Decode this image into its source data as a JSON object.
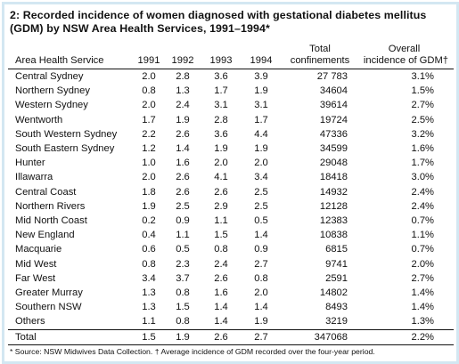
{
  "title": "2: Recorded incidence of women diagnosed with gestational diabetes mellitus (GDM) by NSW Area Health Services, 1991–1994*",
  "table": {
    "headers": {
      "area": "Area Health Service",
      "y1991": "1991",
      "y1992": "1992",
      "y1993": "1993",
      "y1994": "1994",
      "confinements_line1": "Total",
      "confinements_line2": "confinements",
      "incidence_line1": "Overall",
      "incidence_line2": "incidence of GDM†"
    },
    "rows": [
      {
        "area": "Central Sydney",
        "y1991": "2.0",
        "y1992": "2.8",
        "y1993": "3.6",
        "y1994": "3.9",
        "confinements": "27 783",
        "incidence": "3.1%"
      },
      {
        "area": "Northern Sydney",
        "y1991": "0.8",
        "y1992": "1.3",
        "y1993": "1.7",
        "y1994": "1.9",
        "confinements": "34604",
        "incidence": "1.5%"
      },
      {
        "area": "Western Sydney",
        "y1991": "2.0",
        "y1992": "2.4",
        "y1993": "3.1",
        "y1994": "3.1",
        "confinements": "39614",
        "incidence": "2.7%"
      },
      {
        "area": "Wentworth",
        "y1991": "1.7",
        "y1992": "1.9",
        "y1993": "2.8",
        "y1994": "1.7",
        "confinements": "19724",
        "incidence": "2.5%"
      },
      {
        "area": "South Western Sydney",
        "y1991": "2.2",
        "y1992": "2.6",
        "y1993": "3.6",
        "y1994": "4.4",
        "confinements": "47336",
        "incidence": "3.2%"
      },
      {
        "area": "South Eastern Sydney",
        "y1991": "1.2",
        "y1992": "1.4",
        "y1993": "1.9",
        "y1994": "1.9",
        "confinements": "34599",
        "incidence": "1.6%"
      },
      {
        "area": "Hunter",
        "y1991": "1.0",
        "y1992": "1.6",
        "y1993": "2.0",
        "y1994": "2.0",
        "confinements": "29048",
        "incidence": "1.7%"
      },
      {
        "area": "Illawarra",
        "y1991": "2.0",
        "y1992": "2.6",
        "y1993": "4.1",
        "y1994": "3.4",
        "confinements": "18418",
        "incidence": "3.0%"
      },
      {
        "area": "Central Coast",
        "y1991": "1.8",
        "y1992": "2.6",
        "y1993": "2.6",
        "y1994": "2.5",
        "confinements": "14932",
        "incidence": "2.4%"
      },
      {
        "area": "Northern Rivers",
        "y1991": "1.9",
        "y1992": "2.5",
        "y1993": "2.9",
        "y1994": "2.5",
        "confinements": "12128",
        "incidence": "2.4%"
      },
      {
        "area": "Mid North Coast",
        "y1991": "0.2",
        "y1992": "0.9",
        "y1993": "1.1",
        "y1994": "0.5",
        "confinements": "12383",
        "incidence": "0.7%"
      },
      {
        "area": "New England",
        "y1991": "0.4",
        "y1992": "1.1",
        "y1993": "1.5",
        "y1994": "1.4",
        "confinements": "10838",
        "incidence": "1.1%"
      },
      {
        "area": "Macquarie",
        "y1991": "0.6",
        "y1992": "0.5",
        "y1993": "0.8",
        "y1994": "0.9",
        "confinements": "6815",
        "incidence": "0.7%"
      },
      {
        "area": "Mid West",
        "y1991": "0.8",
        "y1992": "2.3",
        "y1993": "2.4",
        "y1994": "2.7",
        "confinements": "9741",
        "incidence": "2.0%"
      },
      {
        "area": "Far West",
        "y1991": "3.4",
        "y1992": "3.7",
        "y1993": "2.6",
        "y1994": "0.8",
        "confinements": "2591",
        "incidence": "2.7%"
      },
      {
        "area": "Greater Murray",
        "y1991": "1.3",
        "y1992": "0.8",
        "y1993": "1.6",
        "y1994": "2.0",
        "confinements": "14802",
        "incidence": "1.4%"
      },
      {
        "area": "Southern NSW",
        "y1991": "1.3",
        "y1992": "1.5",
        "y1993": "1.4",
        "y1994": "1.4",
        "confinements": "8493",
        "incidence": "1.4%"
      },
      {
        "area": "Others",
        "y1991": "1.1",
        "y1992": "0.8",
        "y1993": "1.4",
        "y1994": "1.9",
        "confinements": "3219",
        "incidence": "1.3%"
      }
    ],
    "total": {
      "area": "Total",
      "y1991": "1.5",
      "y1992": "1.9",
      "y1993": "2.6",
      "y1994": "2.7",
      "confinements": "347068",
      "incidence": "2.2%"
    }
  },
  "footnote": "* Source: NSW Midwives Data Collection. † Average incidence of GDM recorded over the four-year period."
}
